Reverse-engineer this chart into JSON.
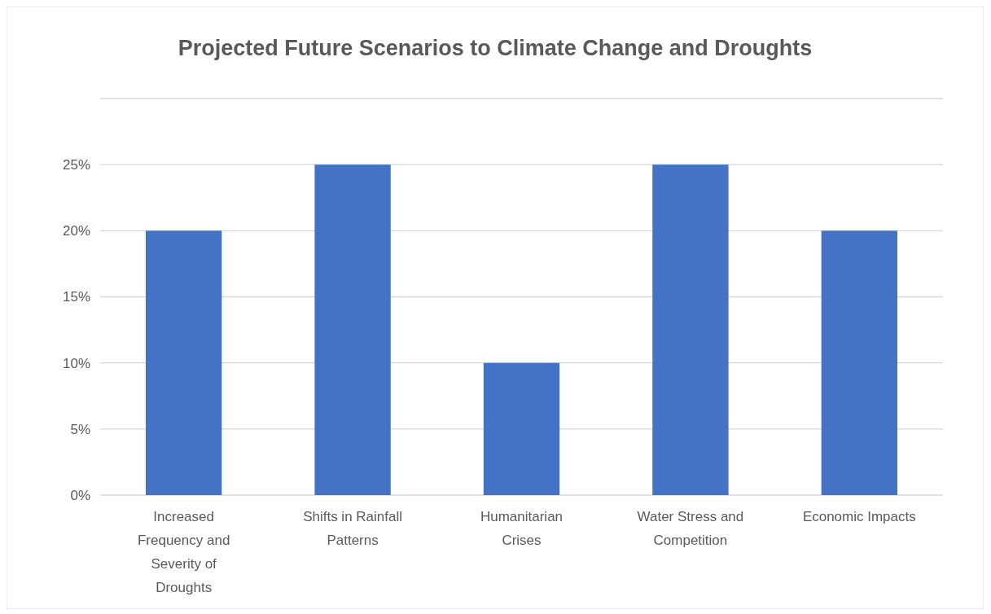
{
  "chart_data": {
    "type": "bar",
    "title": "Projected Future Scenarios to Climate Change and Droughts",
    "categories": [
      "Increased Frequency and Severity of Droughts",
      "Shifts in Rainfall Patterns",
      "Humanitarian Crises",
      "Water Stress and Competition",
      "Economic Impacts"
    ],
    "values": [
      20,
      25,
      10,
      25,
      20
    ],
    "color": "#4472c4",
    "ylim": [
      0,
      30
    ],
    "yticks": [
      {
        "value": 0,
        "label": "0%"
      },
      {
        "value": 5,
        "label": "5%"
      },
      {
        "value": 10,
        "label": "10%"
      },
      {
        "value": 15,
        "label": "15%"
      },
      {
        "value": 20,
        "label": "20%"
      },
      {
        "value": 25,
        "label": "25%"
      },
      {
        "value": 30,
        "label": null
      }
    ],
    "grid": true
  }
}
